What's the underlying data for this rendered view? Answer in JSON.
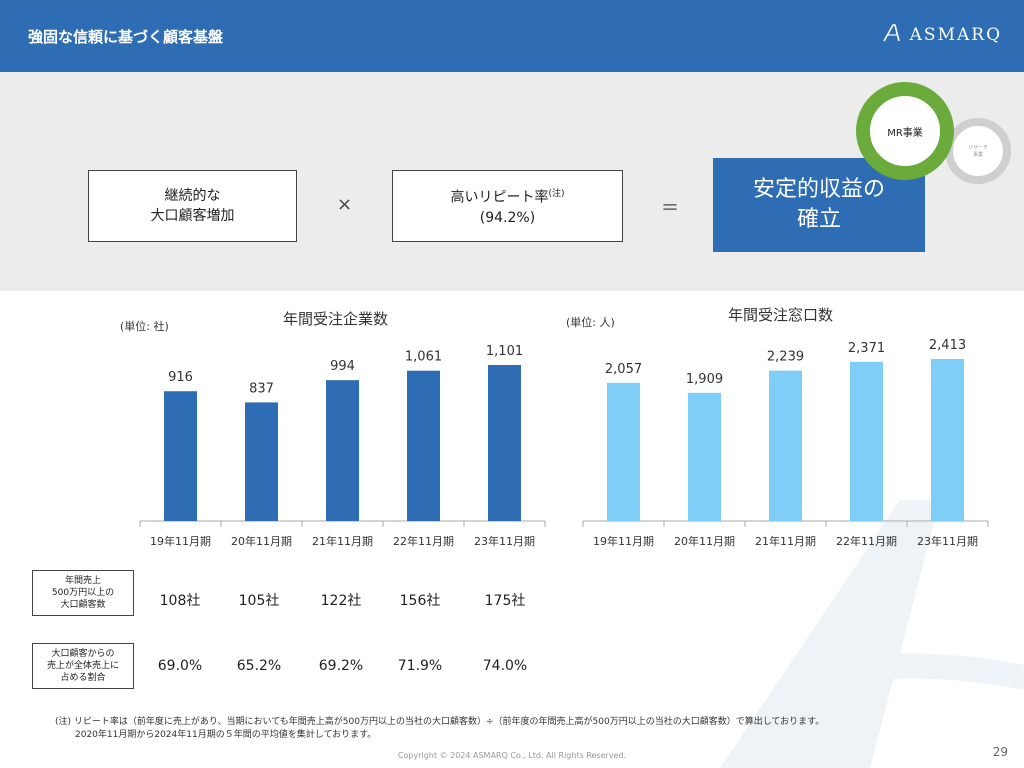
{
  "header": {
    "title": "強固な信頼に基づく顧客基盤",
    "logo": "ASMARQ"
  },
  "formula": {
    "box1": "継続的な\n大口顧客増加",
    "times": "×",
    "box2_main": "高いリピート率",
    "box2_note": "(注)",
    "box2_sub": "(94.2%)",
    "equals": "＝",
    "result": "安定的収益の\n確立"
  },
  "circles": {
    "main": "MR事業",
    "secondary": "リサーチ\n事業"
  },
  "chart_data": [
    {
      "type": "bar",
      "title": "年間受注企業数",
      "unit": "(単位: 社)",
      "categories": [
        "19年11月期",
        "20年11月期",
        "21年11月期",
        "22年11月期",
        "23年11月期"
      ],
      "values": [
        916,
        837,
        994,
        1061,
        1101
      ],
      "labels": [
        "916",
        "837",
        "994",
        "1,061",
        "1,101"
      ],
      "color": "#2e6db4"
    },
    {
      "type": "bar",
      "title": "年間受注窓口数",
      "unit": "(単位: 人)",
      "categories": [
        "19年11月期",
        "20年11月期",
        "21年11月期",
        "22年11月期",
        "23年11月期"
      ],
      "values": [
        2057,
        1909,
        2239,
        2371,
        2413
      ],
      "labels": [
        "2,057",
        "1,909",
        "2,239",
        "2,371",
        "2,413"
      ],
      "color": "#7ecef8"
    }
  ],
  "table": [
    {
      "label": "年間売上\n500万円以上の\n大口顧客数",
      "values": [
        "108社",
        "105社",
        "122社",
        "156社",
        "175社"
      ]
    },
    {
      "label": "大口顧客からの\n売上が全体売上に\n占める割合",
      "values": [
        "69.0%",
        "65.2%",
        "69.2%",
        "71.9%",
        "74.0%"
      ]
    }
  ],
  "note_line1": "(注) リピート率は（前年度に売上があり、当期においても年間売上高が500万円以上の当社の大口顧客数）÷（前年度の年間売上高が500万円以上の当社の大口顧客数）で算出しております。",
  "note_line2": "2020年11月期から2024年11月期の５年間の平均値を集計しております。",
  "copyright": "Copyright © 2024 ASMARQ Co., Ltd. All Rights Reserved.",
  "page": "29"
}
